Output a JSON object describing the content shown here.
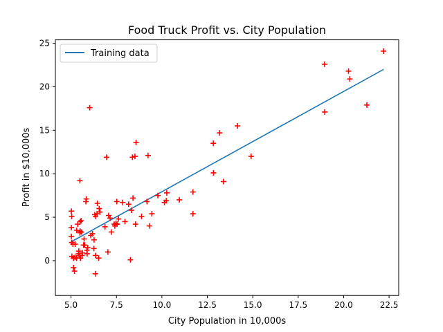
{
  "chart_data": {
    "type": "scatter",
    "title": "Food Truck Profit vs. City Population",
    "xlabel": "City Population in 10,000s",
    "ylabel": "Profit in $10,000s",
    "xlim": [
      4.14,
      23.03
    ],
    "ylim": [
      -4.0,
      25.4
    ],
    "xticks": [
      "5.0",
      "7.5",
      "10.0",
      "12.5",
      "15.0",
      "17.5",
      "20.0",
      "22.5"
    ],
    "xtick_values": [
      5.0,
      7.5,
      10.0,
      12.5,
      15.0,
      17.5,
      20.0,
      22.5
    ],
    "yticks": [
      "0",
      "5",
      "10",
      "15",
      "20",
      "25"
    ],
    "ytick_values": [
      0,
      5,
      10,
      15,
      20,
      25
    ],
    "legend": {
      "entries": [
        "Training data"
      ],
      "position": "top-left"
    },
    "grid": false,
    "colors": {
      "points": "#ff0000",
      "line": "#1f77b4"
    },
    "fit_line": {
      "name": "Training data",
      "x": [
        5.03,
        22.2
      ],
      "y": [
        2.2,
        22.0
      ]
    },
    "series": [
      {
        "marker": "+",
        "x": [
          5.02,
          5.04,
          5.02,
          5.02,
          5.04,
          5.05,
          5.14,
          5.14,
          5.11,
          5.19,
          5.22,
          5.23,
          5.31,
          5.31,
          5.37,
          5.41,
          5.43,
          5.47,
          5.49,
          5.49,
          5.5,
          5.5,
          5.52,
          5.56,
          5.57,
          5.61,
          5.63,
          5.69,
          5.72,
          5.75,
          5.82,
          5.84,
          5.87,
          5.89,
          5.92,
          6.03,
          6.09,
          6.18,
          6.26,
          6.27,
          6.31,
          6.34,
          6.35,
          6.35,
          6.43,
          6.45,
          6.52,
          6.55,
          6.59,
          6.87,
          6.96,
          7.03,
          7.07,
          7.15,
          7.22,
          7.38,
          7.41,
          7.47,
          7.52,
          7.54,
          7.61,
          7.84,
          7.97,
          8.17,
          8.27,
          8.33,
          8.38,
          8.41,
          8.52,
          8.55,
          8.58,
          8.88,
          9.18,
          9.24,
          9.31,
          9.45,
          9.78,
          10.14,
          10.24,
          10.27,
          10.96,
          11.71,
          11.71,
          12.84,
          12.83,
          13.18,
          13.39,
          14.16,
          14.91,
          18.95,
          18.96,
          20.27,
          20.34,
          21.28,
          22.2
        ],
        "y": [
          5.7,
          5.1,
          3.8,
          2.8,
          2.1,
          0.5,
          0.3,
          -0.8,
          1.9,
          -1.2,
          0.4,
          1.9,
          3.5,
          0.3,
          4.2,
          0.8,
          1.1,
          0.6,
          9.2,
          3.2,
          4.5,
          3.4,
          0.3,
          4.6,
          3.3,
          0.6,
          0.9,
          1.8,
          2.5,
          1.8,
          6.8,
          7.1,
          1.2,
          0.8,
          1.5,
          17.6,
          2.9,
          3.1,
          1.4,
          2.4,
          5.3,
          -1.5,
          5.1,
          0.6,
          5.4,
          6.6,
          0.3,
          6.0,
          5.6,
          3.9,
          11.9,
          1.0,
          5.2,
          4.9,
          3.3,
          4.2,
          4.0,
          4.3,
          6.8,
          4.2,
          4.8,
          6.7,
          4.5,
          6.5,
          0.1,
          5.8,
          11.9,
          7.2,
          12.0,
          4.2,
          13.6,
          5.1,
          6.8,
          12.1,
          4.0,
          5.4,
          7.5,
          6.7,
          6.9,
          7.8,
          7.0,
          7.9,
          5.4,
          10.1,
          13.5,
          14.7,
          9.1,
          15.5,
          12.0,
          22.6,
          17.1,
          21.8,
          20.9,
          17.9,
          24.1
        ]
      }
    ]
  }
}
